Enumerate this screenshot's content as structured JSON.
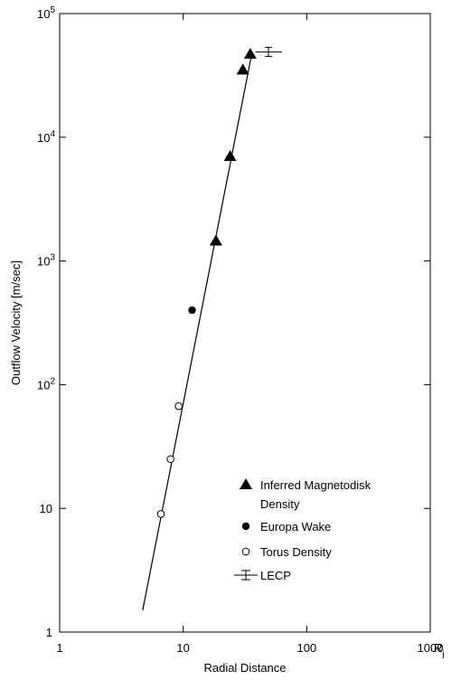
{
  "chart_data": {
    "type": "scatter",
    "xlabel": "Radial Distance",
    "ylabel": "Outflow Velocity [m/sec]",
    "x_unit_label": "R",
    "x_unit_subscript": "j",
    "x_scale": "log",
    "y_scale": "log",
    "xlim": [
      1,
      1000
    ],
    "ylim": [
      1,
      100000
    ],
    "x_ticks": [
      {
        "value": 1,
        "label": "1"
      },
      {
        "value": 10,
        "label": "10"
      },
      {
        "value": 100,
        "label": "100"
      },
      {
        "value": 1000,
        "label": "1000"
      }
    ],
    "y_ticks": [
      {
        "value": 1,
        "label": "1",
        "exp": ""
      },
      {
        "value": 10,
        "label": "10",
        "exp": ""
      },
      {
        "value": 100,
        "label": "10",
        "exp": "2"
      },
      {
        "value": 1000,
        "label": "10",
        "exp": "3"
      },
      {
        "value": 10000,
        "label": "10",
        "exp": "4"
      },
      {
        "value": 100000,
        "label": "10",
        "exp": "5"
      }
    ],
    "fit_line": {
      "x": [
        4.7,
        36.0
      ],
      "y": [
        1.5,
        48000
      ]
    },
    "series": [
      {
        "name": "Inferred Magnetodisk Density",
        "name_lines": [
          "Inferred Magnetodisk",
          "Density"
        ],
        "marker": "filled-triangle",
        "points": [
          [
            18.4,
            1450
          ],
          [
            24.0,
            7000
          ],
          [
            30.4,
            35000
          ],
          [
            34.9,
            47000
          ]
        ]
      },
      {
        "name": "Europa Wake",
        "name_lines": [
          "Europa Wake"
        ],
        "marker": "filled-circle",
        "points": [
          [
            11.8,
            400
          ]
        ]
      },
      {
        "name": "Torus Density",
        "name_lines": [
          "Torus Density"
        ],
        "marker": "open-circle",
        "points": [
          [
            6.6,
            9
          ],
          [
            7.9,
            25
          ],
          [
            9.2,
            67
          ]
        ]
      },
      {
        "name": "LECP",
        "name_lines": [
          "LECP"
        ],
        "marker": "errorbar",
        "points": [
          [
            49.0,
            49000
          ]
        ],
        "x_err": [
          [
            38.5,
            63.0
          ]
        ]
      }
    ],
    "legend": "bottom-right",
    "grid": false
  }
}
